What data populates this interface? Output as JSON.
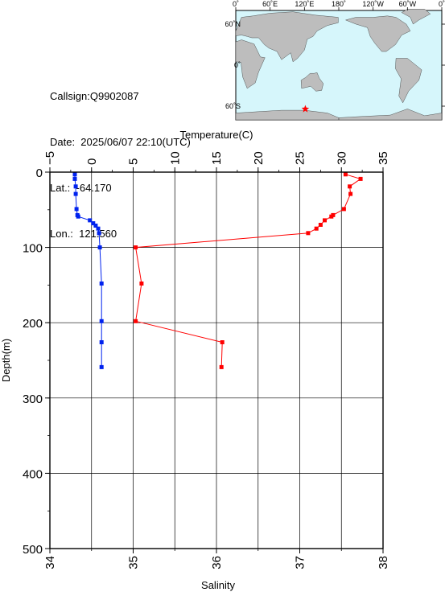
{
  "info": {
    "callsign": "Callsign:Q9902087",
    "date": "Date:  2025/06/07 22:10(UTC)",
    "lat": "Lat.:  -64.170",
    "lon": "Lon.:  121.560"
  },
  "map": {
    "lon_ticks": [
      "0˚",
      "60˚E",
      "120˚E",
      "180˚",
      "120˚W",
      "60˚W",
      "0˚"
    ],
    "lat_ticks": [
      "60˚N",
      "0˚",
      "60˚S"
    ],
    "ocean_color": "#d6f6fb",
    "land_color": "#bdbdbd",
    "marker_color": "#ff0000",
    "marker": {
      "lat": -64.17,
      "lon": 121.56
    }
  },
  "chart_data": {
    "type": "line",
    "title": "",
    "ylabel": "Depth(m)",
    "ylim": [
      0,
      500
    ],
    "y_ticks": [
      "0",
      "100",
      "200",
      "300",
      "400",
      "500"
    ],
    "y_inverted": true,
    "top_axis": {
      "label": "Temperature(C)",
      "range": [
        -5,
        35
      ],
      "ticks": [
        "−5",
        "0",
        "5",
        "10",
        "15",
        "20",
        "25",
        "30",
        "35"
      ]
    },
    "bottom_axis": {
      "label": "Salinity",
      "range": [
        34,
        38
      ],
      "ticks": [
        "34",
        "35",
        "36",
        "37",
        "38"
      ]
    },
    "grid": true,
    "series": [
      {
        "axis": "temperature",
        "color": "#ff0000",
        "points": [
          {
            "value": 30.5,
            "depth": 3
          },
          {
            "value": 32.3,
            "depth": 9
          },
          {
            "value": 31.0,
            "depth": 19
          },
          {
            "value": 31.1,
            "depth": 29
          },
          {
            "value": 30.3,
            "depth": 49
          },
          {
            "value": 29.0,
            "depth": 57
          },
          {
            "value": 28.8,
            "depth": 59
          },
          {
            "value": 28.0,
            "depth": 64
          },
          {
            "value": 27.5,
            "depth": 70
          },
          {
            "value": 27.0,
            "depth": 75
          },
          {
            "value": 26.0,
            "depth": 81
          },
          {
            "value": 5.3,
            "depth": 100
          },
          {
            "value": 6.0,
            "depth": 148
          },
          {
            "value": 5.3,
            "depth": 198
          },
          {
            "value": 15.7,
            "depth": 226
          },
          {
            "value": 15.6,
            "depth": 259
          }
        ]
      },
      {
        "axis": "salinity",
        "color": "#0022ee",
        "points": [
          {
            "value": 34.3,
            "depth": 3
          },
          {
            "value": 34.3,
            "depth": 9
          },
          {
            "value": 34.31,
            "depth": 19
          },
          {
            "value": 34.31,
            "depth": 29
          },
          {
            "value": 34.32,
            "depth": 49
          },
          {
            "value": 34.33,
            "depth": 57
          },
          {
            "value": 34.34,
            "depth": 59
          },
          {
            "value": 34.48,
            "depth": 64
          },
          {
            "value": 34.52,
            "depth": 68
          },
          {
            "value": 34.55,
            "depth": 71
          },
          {
            "value": 34.58,
            "depth": 75
          },
          {
            "value": 34.59,
            "depth": 81
          },
          {
            "value": 34.6,
            "depth": 100
          },
          {
            "value": 34.62,
            "depth": 148
          },
          {
            "value": 34.62,
            "depth": 198
          },
          {
            "value": 34.62,
            "depth": 226
          },
          {
            "value": 34.62,
            "depth": 259
          }
        ]
      }
    ]
  }
}
